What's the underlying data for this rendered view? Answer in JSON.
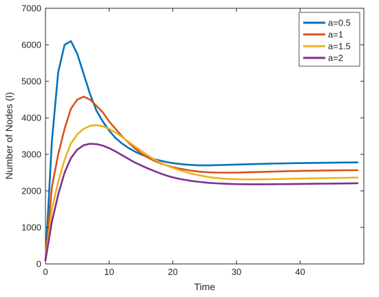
{
  "chart_data": {
    "type": "line",
    "title": "",
    "xlabel": "Time",
    "ylabel": "Number of Nodes (I)",
    "xlim": [
      0,
      50
    ],
    "ylim": [
      0,
      7000
    ],
    "xticks": [
      0,
      10,
      20,
      30,
      40
    ],
    "yticks": [
      0,
      1000,
      2000,
      3000,
      4000,
      5000,
      6000,
      7000
    ],
    "grid": false,
    "legend_position": "top-right",
    "series": [
      {
        "name": "a=0.5",
        "color": "#0072BD",
        "x": [
          0,
          1,
          2,
          3,
          4,
          5,
          6,
          7,
          8,
          9,
          10,
          11,
          12,
          13,
          14,
          15,
          16,
          17,
          18,
          19,
          20,
          21,
          22,
          23,
          24,
          25,
          26,
          27,
          28,
          29,
          30,
          31,
          32,
          33,
          34,
          35,
          36,
          37,
          38,
          39,
          40,
          41,
          42,
          43,
          44,
          45,
          46,
          47,
          48,
          49
        ],
        "values": [
          100,
          3350,
          5250,
          6000,
          6100,
          5750,
          5200,
          4650,
          4200,
          3900,
          3650,
          3450,
          3300,
          3180,
          3080,
          3000,
          2930,
          2870,
          2830,
          2790,
          2760,
          2740,
          2720,
          2710,
          2700,
          2700,
          2700,
          2705,
          2710,
          2715,
          2720,
          2725,
          2730,
          2735,
          2740,
          2745,
          2750,
          2752,
          2755,
          2758,
          2760,
          2762,
          2765,
          2768,
          2770,
          2772,
          2775,
          2777,
          2778,
          2780
        ]
      },
      {
        "name": "a=1",
        "color": "#D95319",
        "x": [
          0,
          1,
          2,
          3,
          4,
          5,
          6,
          7,
          8,
          9,
          10,
          11,
          12,
          13,
          14,
          15,
          16,
          17,
          18,
          19,
          20,
          21,
          22,
          23,
          24,
          25,
          26,
          27,
          28,
          29,
          30,
          31,
          32,
          33,
          34,
          35,
          36,
          37,
          38,
          39,
          40,
          41,
          42,
          43,
          44,
          45,
          46,
          47,
          48,
          49
        ],
        "values": [
          100,
          2100,
          3000,
          3700,
          4250,
          4500,
          4580,
          4500,
          4330,
          4150,
          3900,
          3700,
          3500,
          3330,
          3170,
          3030,
          2920,
          2830,
          2760,
          2700,
          2650,
          2610,
          2580,
          2550,
          2530,
          2515,
          2505,
          2500,
          2500,
          2500,
          2500,
          2505,
          2510,
          2515,
          2520,
          2525,
          2530,
          2535,
          2540,
          2543,
          2546,
          2550,
          2553,
          2556,
          2558,
          2560,
          2562,
          2564,
          2566,
          2568
        ]
      },
      {
        "name": "a=1.5",
        "color": "#EDB120",
        "x": [
          0,
          1,
          2,
          3,
          4,
          5,
          6,
          7,
          8,
          9,
          10,
          11,
          12,
          13,
          14,
          15,
          16,
          17,
          18,
          19,
          20,
          21,
          22,
          23,
          24,
          25,
          26,
          27,
          28,
          29,
          30,
          31,
          32,
          33,
          34,
          35,
          36,
          37,
          38,
          39,
          40,
          41,
          42,
          43,
          44,
          45,
          46,
          47,
          48,
          49
        ],
        "values": [
          100,
          1500,
          2250,
          2850,
          3300,
          3550,
          3700,
          3780,
          3800,
          3770,
          3700,
          3600,
          3480,
          3350,
          3220,
          3100,
          2980,
          2870,
          2780,
          2700,
          2630,
          2570,
          2520,
          2470,
          2430,
          2400,
          2370,
          2350,
          2335,
          2325,
          2320,
          2315,
          2315,
          2315,
          2318,
          2320,
          2323,
          2326,
          2330,
          2333,
          2336,
          2340,
          2343,
          2346,
          2349,
          2352,
          2355,
          2358,
          2361,
          2364
        ]
      },
      {
        "name": "a=2",
        "color": "#7E2F8E",
        "x": [
          0,
          1,
          2,
          3,
          4,
          5,
          6,
          7,
          8,
          9,
          10,
          11,
          12,
          13,
          14,
          15,
          16,
          17,
          18,
          19,
          20,
          21,
          22,
          23,
          24,
          25,
          26,
          27,
          28,
          29,
          30,
          31,
          32,
          33,
          34,
          35,
          36,
          37,
          38,
          39,
          40,
          41,
          42,
          43,
          44,
          45,
          46,
          47,
          48,
          49
        ],
        "values": [
          100,
          1150,
          1900,
          2500,
          2900,
          3130,
          3250,
          3290,
          3280,
          3240,
          3170,
          3080,
          2980,
          2880,
          2780,
          2700,
          2620,
          2550,
          2480,
          2420,
          2370,
          2330,
          2300,
          2270,
          2250,
          2230,
          2215,
          2205,
          2197,
          2190,
          2185,
          2182,
          2180,
          2180,
          2180,
          2181,
          2182,
          2184,
          2186,
          2188,
          2190,
          2192,
          2194,
          2196,
          2198,
          2200,
          2202,
          2204,
          2206,
          2208
        ]
      }
    ]
  }
}
